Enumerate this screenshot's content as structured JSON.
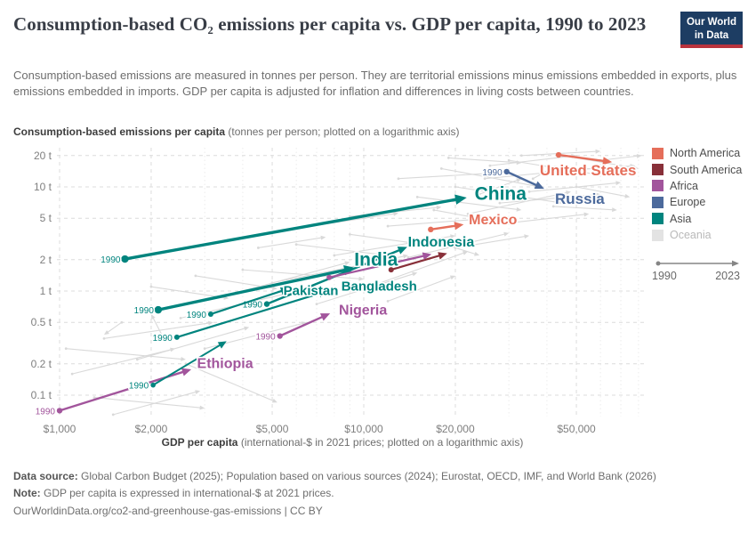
{
  "header": {
    "title": "Consumption-based CO₂ emissions per capita vs. GDP per capita, 1990 to 2023",
    "logo_line1": "Our World",
    "logo_line2": "in Data"
  },
  "subtitle": "Consumption-based emissions are measured in tonnes per person. They are territorial emissions minus emissions embedded in exports, plus emissions embedded in imports. GDP per capita is adjusted for inflation and differences in living costs between countries.",
  "footer": {
    "datasource_label": "Data source:",
    "datasource_text": " Global Carbon Budget (2025); Population based on various sources (2024); Eurostat, OECD, IMF, and World Bank (2026)",
    "note_label": "Note:",
    "note_text": " GDP per capita is expressed in international-$ at 2021 prices.",
    "url": "OurWorldinData.org/co2-and-greenhouse-gas-emissions | CC BY"
  },
  "chart_data": {
    "type": "scatter",
    "subtype": "connected-arrow-scatter",
    "x_axis": {
      "title_bold": "GDP per capita",
      "title_rest": " (international-$ in 2021 prices; plotted on a logarithmic axis)",
      "scale": "log",
      "range": [
        950,
        85000
      ],
      "ticks": [
        {
          "v": 1000,
          "label": "$1,000"
        },
        {
          "v": 2000,
          "label": "$2,000"
        },
        {
          "v": 5000,
          "label": "$5,000"
        },
        {
          "v": 10000,
          "label": "$10,000"
        },
        {
          "v": 20000,
          "label": "$20,000"
        },
        {
          "v": 50000,
          "label": "$50,000"
        }
      ]
    },
    "y_axis": {
      "title_bold": "Consumption-based emissions per capita",
      "title_rest": " (tonnes per person; plotted on a logarithmic axis)",
      "scale": "log",
      "range": [
        0.06,
        24
      ],
      "ticks": [
        {
          "v": 0.1,
          "label": "0.1 t"
        },
        {
          "v": 0.2,
          "label": "0.2 t"
        },
        {
          "v": 0.5,
          "label": "0.5 t"
        },
        {
          "v": 1,
          "label": "1 t"
        },
        {
          "v": 2,
          "label": "2 t"
        },
        {
          "v": 5,
          "label": "5 t"
        },
        {
          "v": 10,
          "label": "10 t"
        },
        {
          "v": 20,
          "label": "20 t"
        }
      ]
    },
    "legend": [
      {
        "label": "North America",
        "color": "#E56E5A",
        "muted": false
      },
      {
        "label": "South America",
        "color": "#883039",
        "muted": false
      },
      {
        "label": "Africa",
        "color": "#A2559C",
        "muted": false
      },
      {
        "label": "Europe",
        "color": "#4C6A9C",
        "muted": false
      },
      {
        "label": "Asia",
        "color": "#00847E",
        "muted": false
      },
      {
        "label": "Oceania",
        "color": "#e3e3e3",
        "muted": true
      }
    ],
    "arrow_legend": {
      "start": "1990",
      "end": "2023"
    },
    "year_start_label": "1990",
    "series": [
      {
        "name": "United States",
        "region": "North America",
        "color": "#E56E5A",
        "x1990": 43700,
        "y1990": 20.3,
        "x2023": 65500,
        "y2023": 17.3,
        "lw": 2.4,
        "fs": 17,
        "dx": -27,
        "dy": 9,
        "year_label": false
      },
      {
        "name": "Russia",
        "region": "Europe",
        "color": "#4C6A9C",
        "x1990": 29500,
        "y1990": 14.0,
        "x2023": 39200,
        "y2023": 9.6,
        "lw": 2.4,
        "fs": 17,
        "dx": 40,
        "dy": 11,
        "year_label": true
      },
      {
        "name": "China",
        "region": "Asia",
        "color": "#00847E",
        "x1990": 1640,
        "y1990": 2.03,
        "x2023": 21800,
        "y2023": 7.9,
        "lw": 3.4,
        "fs": 21,
        "dx": 38,
        "dy": -5,
        "year_label": true
      },
      {
        "name": "Mexico",
        "region": "North America",
        "color": "#E56E5A",
        "x1990": 16600,
        "y1990": 3.9,
        "x2023": 21300,
        "y2023": 4.35,
        "lw": 2.4,
        "fs": 16,
        "dx": 33,
        "dy": -6,
        "year_label": false
      },
      {
        "name": "Indonesia",
        "region": "Asia",
        "color": "#00847E",
        "x1990": 4800,
        "y1990": 0.75,
        "x2023": 13900,
        "y2023": 2.65,
        "lw": 2.4,
        "fs": 16,
        "dx": 38,
        "dy": -6,
        "year_label": true
      },
      {
        "name": "India",
        "region": "Asia",
        "color": "#00847E",
        "x1990": 2110,
        "y1990": 0.66,
        "x2023": 9400,
        "y2023": 1.67,
        "lw": 3.4,
        "fs": 21,
        "dx": 23,
        "dy": -10,
        "year_label": true
      },
      {
        "name": "Bangladesh",
        "region": "Asia",
        "color": "#00847E",
        "x1990": 2430,
        "y1990": 0.36,
        "x2023": 7600,
        "y2023": 1.0,
        "lw": 2.2,
        "fs": 15,
        "dx": 58,
        "dy": -6,
        "year_label": true
      },
      {
        "name": "Pakistan",
        "region": "Asia",
        "color": "#00847E",
        "x1990": 3140,
        "y1990": 0.6,
        "x2023": 5700,
        "y2023": 1.06,
        "lw": 2.2,
        "fs": 15,
        "dx": 24,
        "dy": 2,
        "year_label": true
      },
      {
        "name": "Nigeria",
        "region": "Africa",
        "color": "#A2559C",
        "x1990": 5300,
        "y1990": 0.37,
        "x2023": 7750,
        "y2023": 0.61,
        "lw": 2.4,
        "fs": 16,
        "dx": 37,
        "dy": -4,
        "year_label": true
      },
      {
        "name": "Ethiopia",
        "region": "Africa",
        "color": "#A2559C",
        "x1990": 1000,
        "y1990": 0.071,
        "x2023": 2710,
        "y2023": 0.177,
        "lw": 2.4,
        "fs": 16,
        "dx": 38,
        "dy": -7,
        "year_label": true
      },
      {
        "name": "",
        "region": "South America",
        "color": "#883039",
        "x1990": 12300,
        "y1990": 1.6,
        "x2023": 18800,
        "y2023": 2.3,
        "lw": 2.2,
        "fs": 0,
        "dx": 0,
        "dy": 0,
        "year_label": false
      },
      {
        "name": "",
        "region": "Africa",
        "color": "#A2559C",
        "x1990": 7700,
        "y1990": 1.35,
        "x2023": 16700,
        "y2023": 2.26,
        "lw": 2.2,
        "fs": 0,
        "dx": 0,
        "dy": 0,
        "year_label": false
      },
      {
        "name": "",
        "region": "Asia",
        "color": "#00847E",
        "x1990": 2030,
        "y1990": 0.125,
        "x2023": 3540,
        "y2023": 0.33,
        "lw": 2.0,
        "fs": 0,
        "dx": 0,
        "dy": 0,
        "year_label": true
      }
    ],
    "background_lines": [
      [
        30000,
        18,
        60000,
        13
      ],
      [
        25000,
        12,
        55000,
        15
      ],
      [
        35000,
        9,
        70000,
        11
      ],
      [
        20000,
        10,
        45000,
        7
      ],
      [
        28000,
        7,
        60000,
        8.5
      ],
      [
        40000,
        14,
        78000,
        16
      ],
      [
        18000,
        15,
        38000,
        10
      ],
      [
        22000,
        5.5,
        48000,
        9
      ],
      [
        30000,
        4.5,
        55000,
        5.5
      ],
      [
        26000,
        16,
        50000,
        20
      ],
      [
        45000,
        20,
        80000,
        15
      ],
      [
        15000,
        8,
        33000,
        6
      ],
      [
        50000,
        10,
        75000,
        8
      ],
      [
        8000,
        2.2,
        20000,
        3.4
      ],
      [
        5000,
        1.2,
        14000,
        2.2
      ],
      [
        9000,
        3.5,
        19000,
        2.6
      ],
      [
        12000,
        4.2,
        26000,
        5
      ],
      [
        6000,
        2.8,
        12000,
        2.2
      ],
      [
        4000,
        1.6,
        10000,
        1.3
      ],
      [
        10000,
        1.05,
        22000,
        2.4
      ],
      [
        7000,
        0.75,
        15000,
        1.5
      ],
      [
        14000,
        2.1,
        30000,
        3.6
      ],
      [
        3500,
        0.9,
        9000,
        1.9
      ],
      [
        2500,
        0.55,
        7000,
        1.1
      ],
      [
        16000,
        3.2,
        24000,
        2.2
      ],
      [
        1400,
        0.35,
        3200,
        0.5
      ],
      [
        1100,
        0.16,
        2400,
        0.28
      ],
      [
        1800,
        0.22,
        4200,
        0.45
      ],
      [
        1300,
        0.095,
        3000,
        0.075
      ],
      [
        2200,
        0.35,
        2000,
        0.6
      ],
      [
        1050,
        0.28,
        2600,
        0.22
      ],
      [
        3000,
        0.28,
        6500,
        0.5
      ],
      [
        1600,
        0.5,
        1400,
        0.38
      ],
      [
        12000,
        0.8,
        20000,
        1.4
      ],
      [
        2800,
        1.4,
        5200,
        1.05
      ],
      [
        20000,
        2.6,
        35000,
        3.4
      ],
      [
        9000,
        5.2,
        18000,
        6.4
      ],
      [
        6000,
        4,
        13000,
        5.6
      ],
      [
        60000,
        18,
        82000,
        20
      ],
      [
        13000,
        12,
        26000,
        13.5
      ],
      [
        2600,
        0.2,
        5200,
        0.085
      ],
      [
        1500,
        0.065,
        2900,
        0.11
      ],
      [
        36000,
        12,
        43000,
        16
      ],
      [
        19000,
        19,
        33000,
        17
      ],
      [
        24000,
        8.5,
        33000,
        12
      ],
      [
        17000,
        6,
        28000,
        4.6
      ],
      [
        42000,
        6.5,
        68000,
        6
      ],
      [
        33000,
        20,
        60000,
        22
      ],
      [
        4500,
        2.6,
        7500,
        3.3
      ],
      [
        2000,
        1.1,
        3600,
        0.85
      ]
    ]
  }
}
